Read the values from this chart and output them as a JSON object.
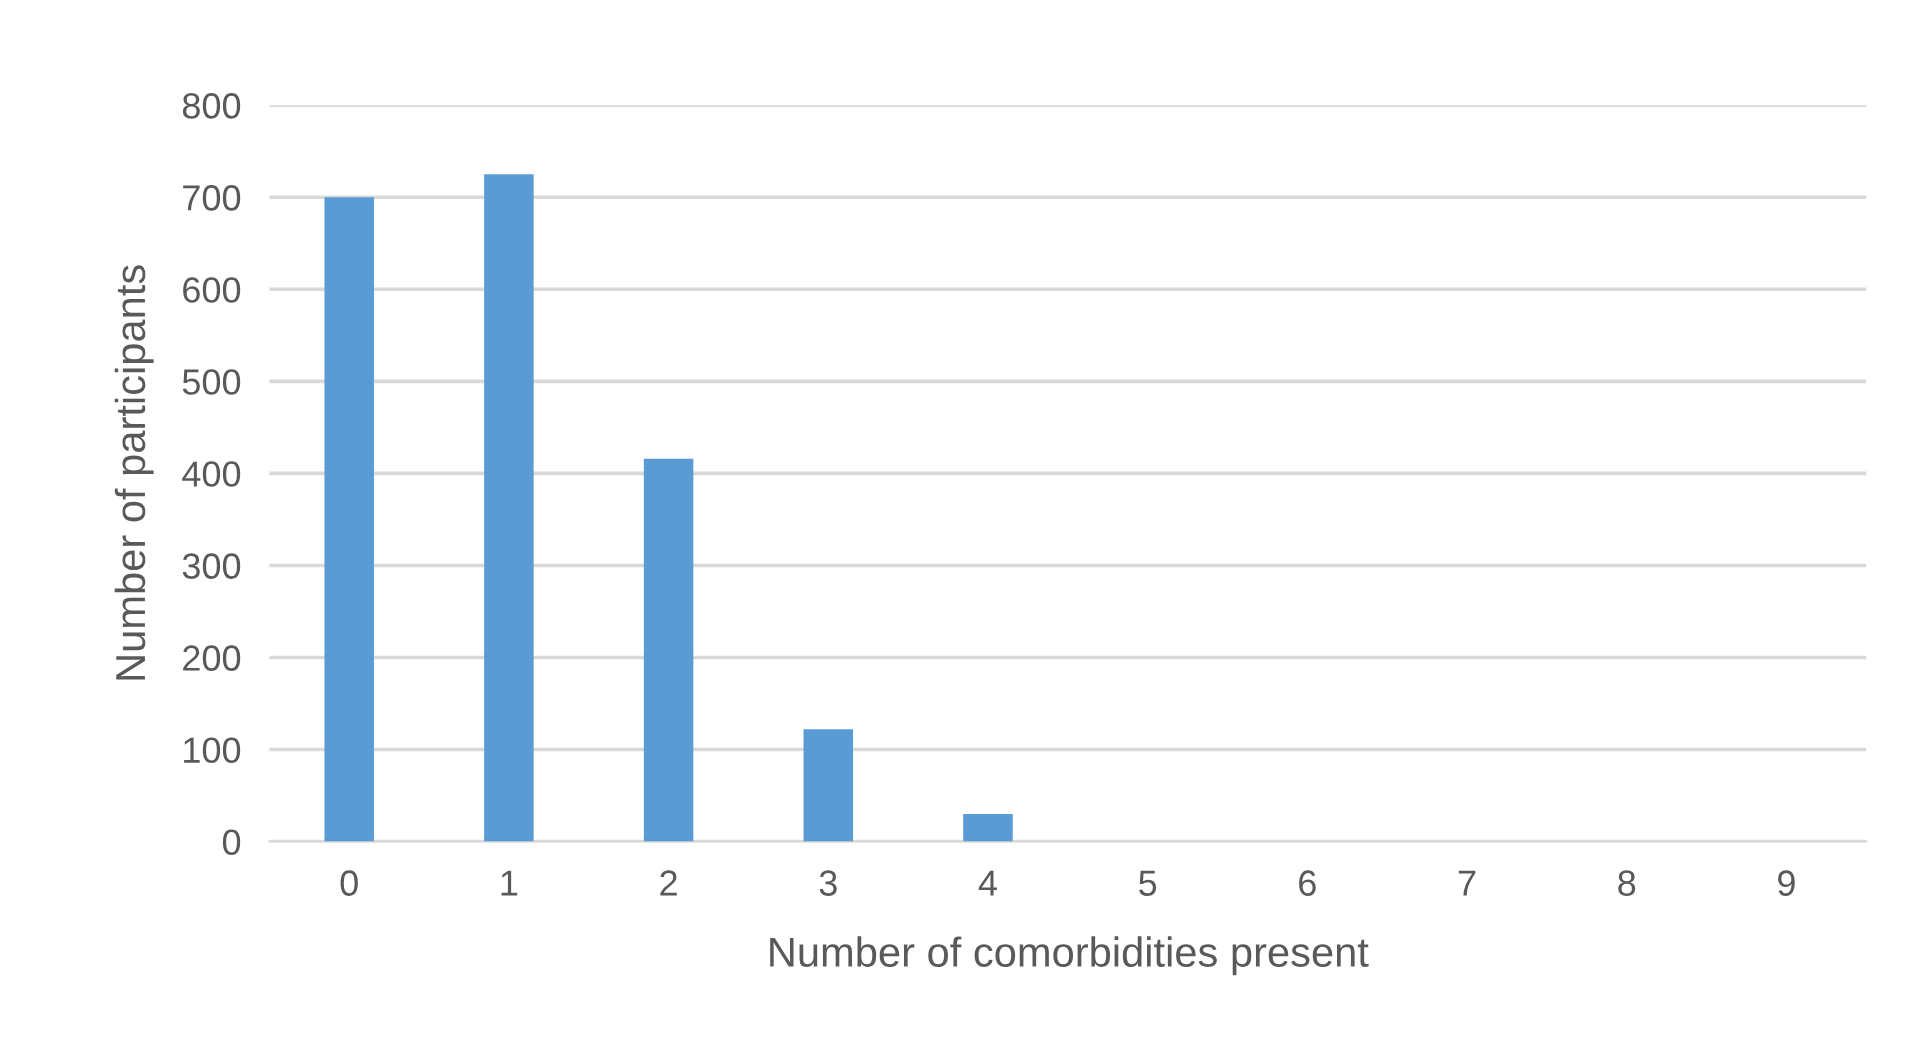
{
  "chart_data": {
    "type": "bar",
    "xlabel": "Number of comorbidities present",
    "ylabel": "Number of participants",
    "categories": [
      "0",
      "1",
      "2",
      "3",
      "4",
      "5",
      "6",
      "7",
      "8",
      "9"
    ],
    "values": [
      700,
      725,
      416,
      122,
      30,
      0,
      0,
      0,
      0,
      0
    ],
    "color": "#5b9bd5",
    "ylim": [
      0,
      800
    ],
    "yticks": [
      0,
      100,
      200,
      300,
      400,
      500,
      600,
      700,
      800
    ],
    "grid": "y"
  }
}
